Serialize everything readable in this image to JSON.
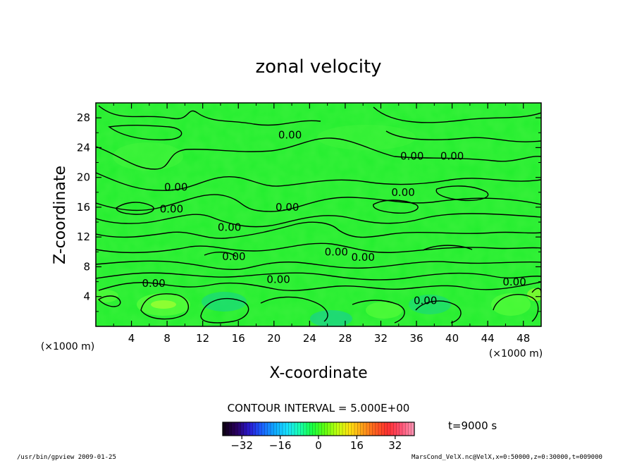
{
  "chart_data": {
    "type": "contour",
    "title": "zonal velocity",
    "xlabel": "X-coordinate",
    "ylabel": "Z-coordinate",
    "x_unit_left": "(×1000 m)",
    "x_unit_right": "(×1000 m)",
    "xlim": [
      0,
      50
    ],
    "ylim": [
      0,
      30
    ],
    "x_ticks": [
      4,
      8,
      12,
      16,
      20,
      24,
      28,
      32,
      36,
      40,
      44,
      48
    ],
    "y_ticks": [
      4,
      8,
      12,
      16,
      20,
      24,
      28
    ],
    "contour_labels": [
      {
        "text": "0.00",
        "x": 21.8,
        "y": 25.2
      },
      {
        "text": "0.00",
        "x": 35.5,
        "y": 22.4
      },
      {
        "text": "0.00",
        "x": 40.0,
        "y": 22.4
      },
      {
        "text": "0.00",
        "x": 9.0,
        "y": 18.2
      },
      {
        "text": "0.00",
        "x": 34.5,
        "y": 17.5
      },
      {
        "text": "0.00",
        "x": 8.5,
        "y": 15.3
      },
      {
        "text": "0.00",
        "x": 21.5,
        "y": 15.5
      },
      {
        "text": "0.00",
        "x": 15.0,
        "y": 12.8
      },
      {
        "text": "0.00",
        "x": 15.5,
        "y": 8.9
      },
      {
        "text": "0.00",
        "x": 27.0,
        "y": 9.5
      },
      {
        "text": "0.00",
        "x": 30.0,
        "y": 8.8
      },
      {
        "text": "0.00",
        "x": 6.5,
        "y": 5.3
      },
      {
        "text": "0.00",
        "x": 20.5,
        "y": 5.8
      },
      {
        "text": "0.00",
        "x": 37.0,
        "y": 3.0
      },
      {
        "text": "0.00",
        "x": 47.0,
        "y": 5.5
      }
    ],
    "contour_interval_text": "CONTOUR INTERVAL = 5.000E+00",
    "colorbar": {
      "range": [
        -40,
        40
      ],
      "tick_labels": [
        "−32",
        "−16",
        "0",
        "16",
        "32"
      ],
      "tick_values": [
        -32,
        -16,
        0,
        16,
        32
      ],
      "colors": [
        "#100018",
        "#2a0060",
        "#2a1ad0",
        "#1a60ff",
        "#10a8ff",
        "#18e0ff",
        "#18ffb0",
        "#18ff40",
        "#60ff10",
        "#c0ff10",
        "#ffe010",
        "#ffa018",
        "#ff6020",
        "#ff3030",
        "#ff5070",
        "#ff90b0"
      ]
    },
    "time_text": "t=9000 s",
    "grid": false
  },
  "footer": {
    "left": "/usr/bin/gpview   2009-01-25",
    "right": "MarsCond_VelX.nc@VelX,x=0:50000,z=0:30000,t=009000"
  },
  "colors": {
    "field": "#22ee2e",
    "field_light": "#46f63c",
    "field_dark": "#18d448",
    "field_blue": "#18c8a0"
  }
}
